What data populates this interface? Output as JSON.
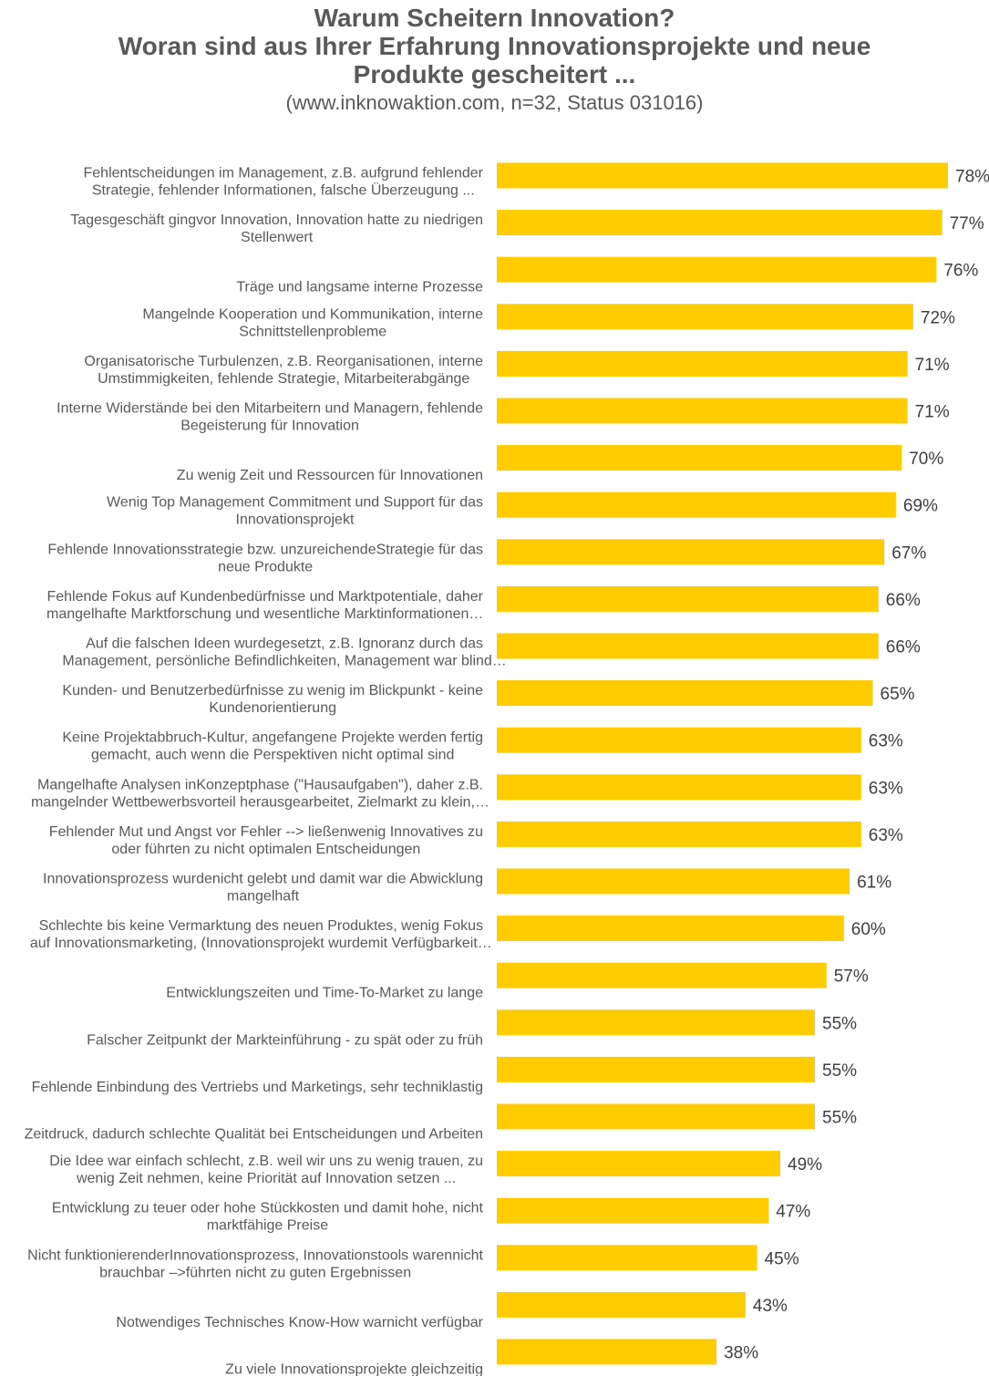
{
  "chart_data": {
    "type": "bar",
    "orientation": "horizontal",
    "title": [
      "Warum Scheitern Innovation?",
      "Woran sind aus Ihrer Erfahrung Innovationsprojekte und neue",
      "Produkte gescheitert ..."
    ],
    "subtitle": "(www.inknowaktion.com,  n=32, Status 031016)",
    "bar_color": "#FFCC00",
    "xlim": [
      0,
      80
    ],
    "grid": false,
    "legend": "none",
    "categories": [
      [
        "Fehlentscheidungen im Management, z.B. aufgrund fehlender",
        "Strategie, fehlender Informationen, falsche Überzeugung ..."
      ],
      [
        "Tagesgeschäft gingvor Innovation, Innovation hatte zu niedrigen",
        "Stellenwert"
      ],
      [
        "Träge und langsame interne Prozesse"
      ],
      [
        "Mangelnde Kooperation und Kommunikation, interne",
        "Schnittstellenprobleme"
      ],
      [
        "Organisatorische Turbulenzen, z.B. Reorganisationen, interne",
        "Umstimmigkeiten, fehlende Strategie, Mitarbeiterabgänge"
      ],
      [
        "Interne Widerstände bei den Mitarbeitern und Managern, fehlende",
        "Begeisterung für Innovation"
      ],
      [
        "Zu wenig Zeit und Ressourcen für Innovationen"
      ],
      [
        "Wenig Top Management Commitment und Support für das",
        "Innovationsprojekt"
      ],
      [
        "Fehlende Innovationsstrategie bzw. unzureichendeStrategie für das",
        "neue Produkte"
      ],
      [
        "Fehlende Fokus auf Kundenbedürfnisse und Marktpotentiale, daher",
        "mangelhafte Marktforschung und wesentliche Marktinformationen…"
      ],
      [
        "Auf die falschen Ideen wurdegesetzt, z.B. Ignoranz durch das",
        "Management, persönliche Befindlichkeiten, Management war blind…"
      ],
      [
        "Kunden- und Benutzerbedürfnisse zu wenig im Blickpunkt - keine",
        "Kundenorientierung"
      ],
      [
        "Keine Projektabbruch-Kultur, angefangene Projekte werden fertig",
        "gemacht, auch wenn die Perspektiven nicht optimal sind"
      ],
      [
        "Mangelhafte Analysen inKonzeptphase (\"Hausaufgaben\"), daher z.B.",
        "mangelnder Wettbewerbsvorteil herausgearbeitet, Zielmarkt zu klein,…"
      ],
      [
        "Fehlender Mut und Angst vor Fehler --> ließenwenig Innovatives zu",
        "oder führten zu nicht optimalen Entscheidungen"
      ],
      [
        "Innovationsprozess wurdenicht gelebt und damit war die Abwicklung",
        "mangelhaft"
      ],
      [
        "Schlechte bis keine Vermarktung des neuen Produktes, wenig Fokus",
        "auf Innovationsmarketing, (Innovationsprojekt wurdemit Verfügbarkeit…"
      ],
      [
        "Entwicklungszeiten und Time-To-Market zu lange"
      ],
      [
        "Falscher Zeitpunkt der Markteinführung - zu spät oder zu früh"
      ],
      [
        "Fehlende Einbindung des Vertriebs und Marketings, sehr techniklastig"
      ],
      [
        "Zeitdruck, dadurch schlechte Qualität bei Entscheidungen und Arbeiten"
      ],
      [
        "Die Idee war einfach schlecht, z.B. weil wir uns zu wenig trauen, zu",
        "wenig Zeit nehmen, keine Priorität auf Innovation setzen ..."
      ],
      [
        "Entwicklung zu teuer oder hohe Stückkosten und damit hohe, nicht",
        "marktfähige Preise"
      ],
      [
        "Nicht funktionierenderInnovationsprozess, Innovationstools warennicht",
        "brauchbar –>führten nicht zu guten Ergebnissen"
      ],
      [
        "Notwendiges Technisches Know-How warnicht verfügbar"
      ],
      [
        "Zu viele Innovationsprojekte gleichzeitig"
      ]
    ],
    "values": [
      78,
      77,
      76,
      72,
      71,
      71,
      70,
      69,
      67,
      66,
      66,
      65,
      63,
      63,
      63,
      61,
      60,
      57,
      55,
      55,
      55,
      49,
      47,
      45,
      43,
      38
    ],
    "value_labels": [
      "78%",
      "77%",
      "76%",
      "72%",
      "71%",
      "71%",
      "70%",
      "69%",
      "67%",
      "66%",
      "66%",
      "65%",
      "63%",
      "63%",
      "63%",
      "61%",
      "60%",
      "57%",
      "55%",
      "55%",
      "55%",
      "49%",
      "47%",
      "45%",
      "43%",
      "38%"
    ]
  }
}
